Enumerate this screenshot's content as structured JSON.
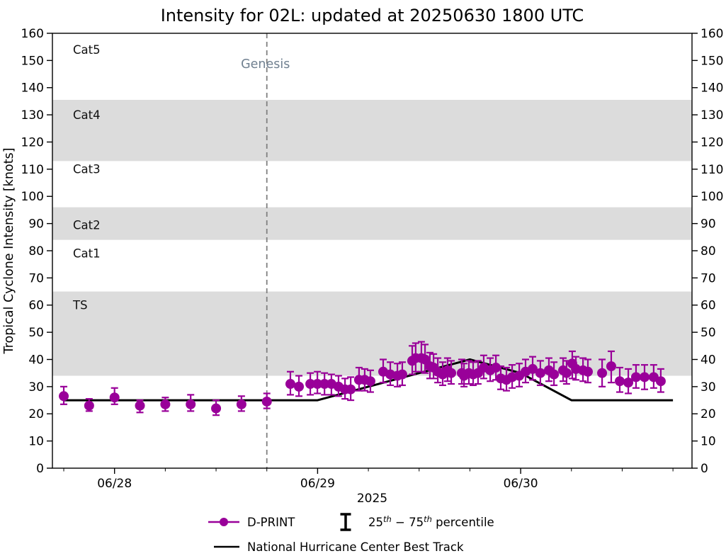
{
  "chart_data": {
    "type": "scatter",
    "title": "Intensity for 02L: updated at 20250630 1800 UTC",
    "ylabel": "Tropical Cyclone Intensity [knots]",
    "year_label": "2025",
    "ylim": [
      0,
      160
    ],
    "ytick_interval": 10,
    "xlim_days": [
      -0.306,
      2.844
    ],
    "day_ticks": [
      {
        "t": 0,
        "label": "06/28"
      },
      {
        "t": 1,
        "label": "06/29"
      },
      {
        "t": 2,
        "label": "06/30"
      }
    ],
    "minor_tick_step_days": 0.25,
    "grid": false,
    "band_color": "#DCDCDC",
    "category_bands": [
      {
        "label": "TS",
        "from": 34,
        "to": 65,
        "shaded": true,
        "label_v": 60
      },
      {
        "label": "Cat1",
        "from": 65,
        "to": 84,
        "shaded": false,
        "label_v": 79
      },
      {
        "label": "Cat2",
        "from": 84,
        "to": 96,
        "shaded": true,
        "label_v": 89.5
      },
      {
        "label": "Cat3",
        "from": 96,
        "to": 113,
        "shaded": false,
        "label_v": 110
      },
      {
        "label": "Cat4",
        "from": 113,
        "to": 135.5,
        "shaded": true,
        "label_v": 130
      },
      {
        "label": "Cat5",
        "from": 135.5,
        "to": 160,
        "shaded": false,
        "label_v": 154
      }
    ],
    "genesis": {
      "t": 0.75,
      "label": "Genesis",
      "line_color": "#808080",
      "label_color": "#708090"
    },
    "series": {
      "dprint": {
        "name": "D-PRINT",
        "color": "#990099",
        "points_format": [
          "t_days_after_0628_00utc",
          "knots",
          "p25",
          "p75"
        ],
        "points": [
          [
            -0.25,
            26.5,
            23.5,
            30.0
          ],
          [
            -0.125,
            23.0,
            21.0,
            25.5
          ],
          [
            0.0,
            26.0,
            23.5,
            29.5
          ],
          [
            0.125,
            23.0,
            20.5,
            25.0
          ],
          [
            0.25,
            23.5,
            21.0,
            26.0
          ],
          [
            0.375,
            23.5,
            21.0,
            27.0
          ],
          [
            0.5,
            22.0,
            19.5,
            25.0
          ],
          [
            0.625,
            23.5,
            21.0,
            26.5
          ],
          [
            0.75,
            24.5,
            22.0,
            27.5
          ],
          [
            0.866,
            31.0,
            27.0,
            35.5
          ],
          [
            0.908,
            30.0,
            26.5,
            34.0
          ],
          [
            0.964,
            31.0,
            27.0,
            35.0
          ],
          [
            0.999,
            31.0,
            27.5,
            35.5
          ],
          [
            1.034,
            31.0,
            27.0,
            35.0
          ],
          [
            1.068,
            31.0,
            27.0,
            34.5
          ],
          [
            1.103,
            30.0,
            26.5,
            34.0
          ],
          [
            1.135,
            29.0,
            25.5,
            33.0
          ],
          [
            1.163,
            29.0,
            25.0,
            33.5
          ],
          [
            1.204,
            32.5,
            28.5,
            37.0
          ],
          [
            1.232,
            32.5,
            28.5,
            36.5
          ],
          [
            1.26,
            32.0,
            28.0,
            36.0
          ],
          [
            1.323,
            35.5,
            31.5,
            40.0
          ],
          [
            1.358,
            34.5,
            30.5,
            39.0
          ],
          [
            1.393,
            34.0,
            30.0,
            38.5
          ],
          [
            1.417,
            34.5,
            30.5,
            39.0
          ],
          [
            1.466,
            39.5,
            34.5,
            45.0
          ],
          [
            1.483,
            40.5,
            35.5,
            46.0
          ],
          [
            1.511,
            40.5,
            35.5,
            46.5
          ],
          [
            1.529,
            40.0,
            35.0,
            45.5
          ],
          [
            1.553,
            37.5,
            33.0,
            42.5
          ],
          [
            1.571,
            37.0,
            33.0,
            42.0
          ],
          [
            1.592,
            35.5,
            31.5,
            40.5
          ],
          [
            1.616,
            34.5,
            30.5,
            39.0
          ],
          [
            1.64,
            36.0,
            32.0,
            40.5
          ],
          [
            1.658,
            35.0,
            31.0,
            39.5
          ],
          [
            1.71,
            35.0,
            31.0,
            40.0
          ],
          [
            1.721,
            34.0,
            30.0,
            38.5
          ],
          [
            1.745,
            35.0,
            31.0,
            39.5
          ],
          [
            1.766,
            34.5,
            30.5,
            39.0
          ],
          [
            1.79,
            35.0,
            31.0,
            39.5
          ],
          [
            1.818,
            37.0,
            33.0,
            41.5
          ],
          [
            1.85,
            36.0,
            32.0,
            40.5
          ],
          [
            1.878,
            37.0,
            32.5,
            41.5
          ],
          [
            1.902,
            33.0,
            29.0,
            37.5
          ],
          [
            1.93,
            32.5,
            28.5,
            37.0
          ],
          [
            1.958,
            33.5,
            29.5,
            38.0
          ],
          [
            1.993,
            34.0,
            30.0,
            38.5
          ],
          [
            2.024,
            35.5,
            31.5,
            40.0
          ],
          [
            2.059,
            36.5,
            32.5,
            41.0
          ],
          [
            2.097,
            35.0,
            30.5,
            39.5
          ],
          [
            2.139,
            36.0,
            32.0,
            40.5
          ],
          [
            2.164,
            34.5,
            30.5,
            39.0
          ],
          [
            2.209,
            36.0,
            32.0,
            40.5
          ],
          [
            2.226,
            35.0,
            31.0,
            39.5
          ],
          [
            2.254,
            38.5,
            33.0,
            43.0
          ],
          [
            2.272,
            36.5,
            32.5,
            41.0
          ],
          [
            2.307,
            36.0,
            32.0,
            40.5
          ],
          [
            2.331,
            35.5,
            31.5,
            40.0
          ],
          [
            2.401,
            35.0,
            30.0,
            40.0
          ],
          [
            2.446,
            37.5,
            31.5,
            43.0
          ],
          [
            2.488,
            32.0,
            28.0,
            37.0
          ],
          [
            2.53,
            31.5,
            27.5,
            36.5
          ],
          [
            2.568,
            33.5,
            29.5,
            38.0
          ],
          [
            2.61,
            33.5,
            29.0,
            38.0
          ],
          [
            2.655,
            33.5,
            29.5,
            38.0
          ],
          [
            2.69,
            32.0,
            28.0,
            36.5
          ]
        ]
      },
      "best_track": {
        "name": "National Hurricane Center Best Track",
        "color": "#000000",
        "t": [
          -0.25,
          0,
          0.25,
          0.5,
          0.75,
          1.0,
          1.25,
          1.5,
          1.75,
          2.0,
          2.25,
          2.5,
          2.75
        ],
        "v": [
          25,
          25,
          25,
          25,
          25,
          25,
          30,
          35,
          40,
          35,
          25,
          25,
          25
        ]
      }
    },
    "legend": {
      "dprint_label": "D-PRINT",
      "percentile_label": {
        "pre": "25",
        "sup_a": "th",
        "mid": " − 75",
        "sup_b": "th",
        "post": " percentile"
      },
      "best_track_label": "National Hurricane Center Best Track"
    }
  }
}
